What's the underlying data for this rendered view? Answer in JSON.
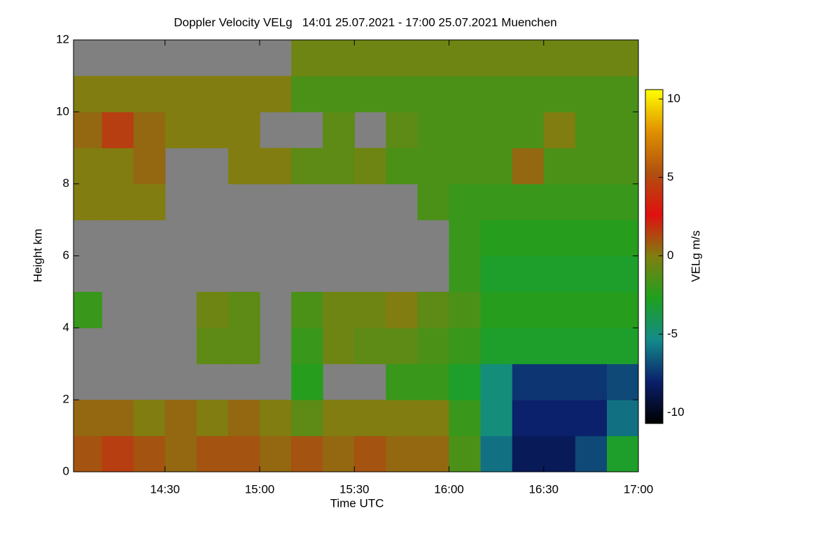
{
  "chart_data": {
    "type": "heatmap",
    "title": "Doppler Velocity VELg   14:01 25.07.2021 - 17:00 25.07.2021 Muenchen",
    "x_label": "Time UTC",
    "y_label": "Height km",
    "colorbar_label": "VELg m/s",
    "xlim": [
      14.0167,
      17.0
    ],
    "xticks": [
      {
        "value": 14.5,
        "label": "14:30"
      },
      {
        "value": 15.0,
        "label": "15:00"
      },
      {
        "value": 15.5,
        "label": "15:30"
      },
      {
        "value": 16.0,
        "label": "16:00"
      },
      {
        "value": 16.5,
        "label": "16:30"
      },
      {
        "value": 17.0,
        "label": "17:00"
      }
    ],
    "ylim": [
      0,
      12
    ],
    "yticks": [
      0,
      2,
      4,
      6,
      8,
      10,
      12
    ],
    "zlim": [
      -10.7,
      10.6
    ],
    "zticks": [
      -10,
      -5,
      0,
      5,
      10
    ],
    "colormap": [
      "#000000",
      "#0b1f6b",
      "#138a8a",
      "#1fa01f",
      "#7f7f10",
      "#e01010",
      "#b05010",
      "#e09000",
      "#ffff00"
    ],
    "missing_color": "#808080",
    "x": [
      14.083,
      14.25,
      14.417,
      14.583,
      14.75,
      14.917,
      15.083,
      15.25,
      15.417,
      15.583,
      15.75,
      15.917,
      16.083,
      16.25,
      16.417,
      16.583,
      16.75,
      16.917
    ],
    "y": [
      0.5,
      1.5,
      2.5,
      3.5,
      4.5,
      5.5,
      6.5,
      7.5,
      8.5,
      9.5,
      10.5,
      11.5
    ],
    "z": [
      [
        1,
        1.5,
        1,
        0.5,
        1,
        1,
        0.5,
        1,
        0.5,
        1,
        0.5,
        0.5,
        -1.5,
        -6,
        -8.5,
        -8.5,
        -7,
        -3
      ],
      [
        0.5,
        0.5,
        0,
        0.5,
        0,
        0.5,
        0,
        -1,
        0,
        0,
        0,
        0,
        -2,
        -5,
        -8,
        -8,
        -8,
        -6
      ],
      [
        null,
        null,
        null,
        null,
        null,
        null,
        null,
        -2.5,
        null,
        null,
        -2,
        -2,
        -3,
        -5,
        -7.5,
        -7.5,
        -7.5,
        -7
      ],
      [
        null,
        null,
        null,
        null,
        -1,
        -1,
        null,
        -2,
        -0.5,
        -1,
        -1,
        -1.5,
        -2,
        -3,
        -3,
        -3,
        -3,
        -3
      ],
      [
        -2,
        null,
        null,
        null,
        -0.5,
        -1,
        null,
        -1.5,
        -0.5,
        -0.5,
        0,
        -1,
        -1.5,
        -2.5,
        -2.5,
        -2.5,
        -2.5,
        -2.5
      ],
      [
        null,
        null,
        null,
        null,
        null,
        null,
        null,
        null,
        null,
        null,
        null,
        null,
        -2,
        -3,
        -3,
        -3,
        -3,
        -3
      ],
      [
        null,
        null,
        null,
        null,
        null,
        null,
        null,
        null,
        null,
        null,
        null,
        null,
        -2,
        -2.5,
        -2.5,
        -2.5,
        -2.5,
        -2.5
      ],
      [
        0,
        0,
        0,
        null,
        null,
        null,
        null,
        null,
        null,
        null,
        null,
        -1.5,
        -2,
        -2,
        -2,
        -2,
        -2,
        -2
      ],
      [
        0,
        0,
        0.5,
        null,
        null,
        0,
        0,
        -1,
        -1,
        -0.5,
        -1.5,
        -1.5,
        -1.5,
        -1.5,
        0.5,
        -1.5,
        -1.5,
        -1.5
      ],
      [
        0.5,
        1.5,
        0.5,
        0,
        0,
        0,
        null,
        null,
        -1,
        null,
        -1,
        -1.5,
        -1.5,
        -1.5,
        -1.5,
        0,
        -1.5,
        -1.5
      ],
      [
        0,
        0,
        0,
        0,
        0,
        0,
        0,
        -1.5,
        -1.5,
        -1.5,
        -1.5,
        -1.5,
        -1.5,
        -1.5,
        -1.5,
        -1.5,
        -1.5,
        -1.5
      ],
      [
        null,
        null,
        null,
        null,
        null,
        null,
        null,
        -0.5,
        -0.5,
        -0.5,
        -0.5,
        -0.5,
        -0.5,
        -0.5,
        -0.5,
        -0.5,
        -0.5,
        -0.5
      ]
    ]
  }
}
